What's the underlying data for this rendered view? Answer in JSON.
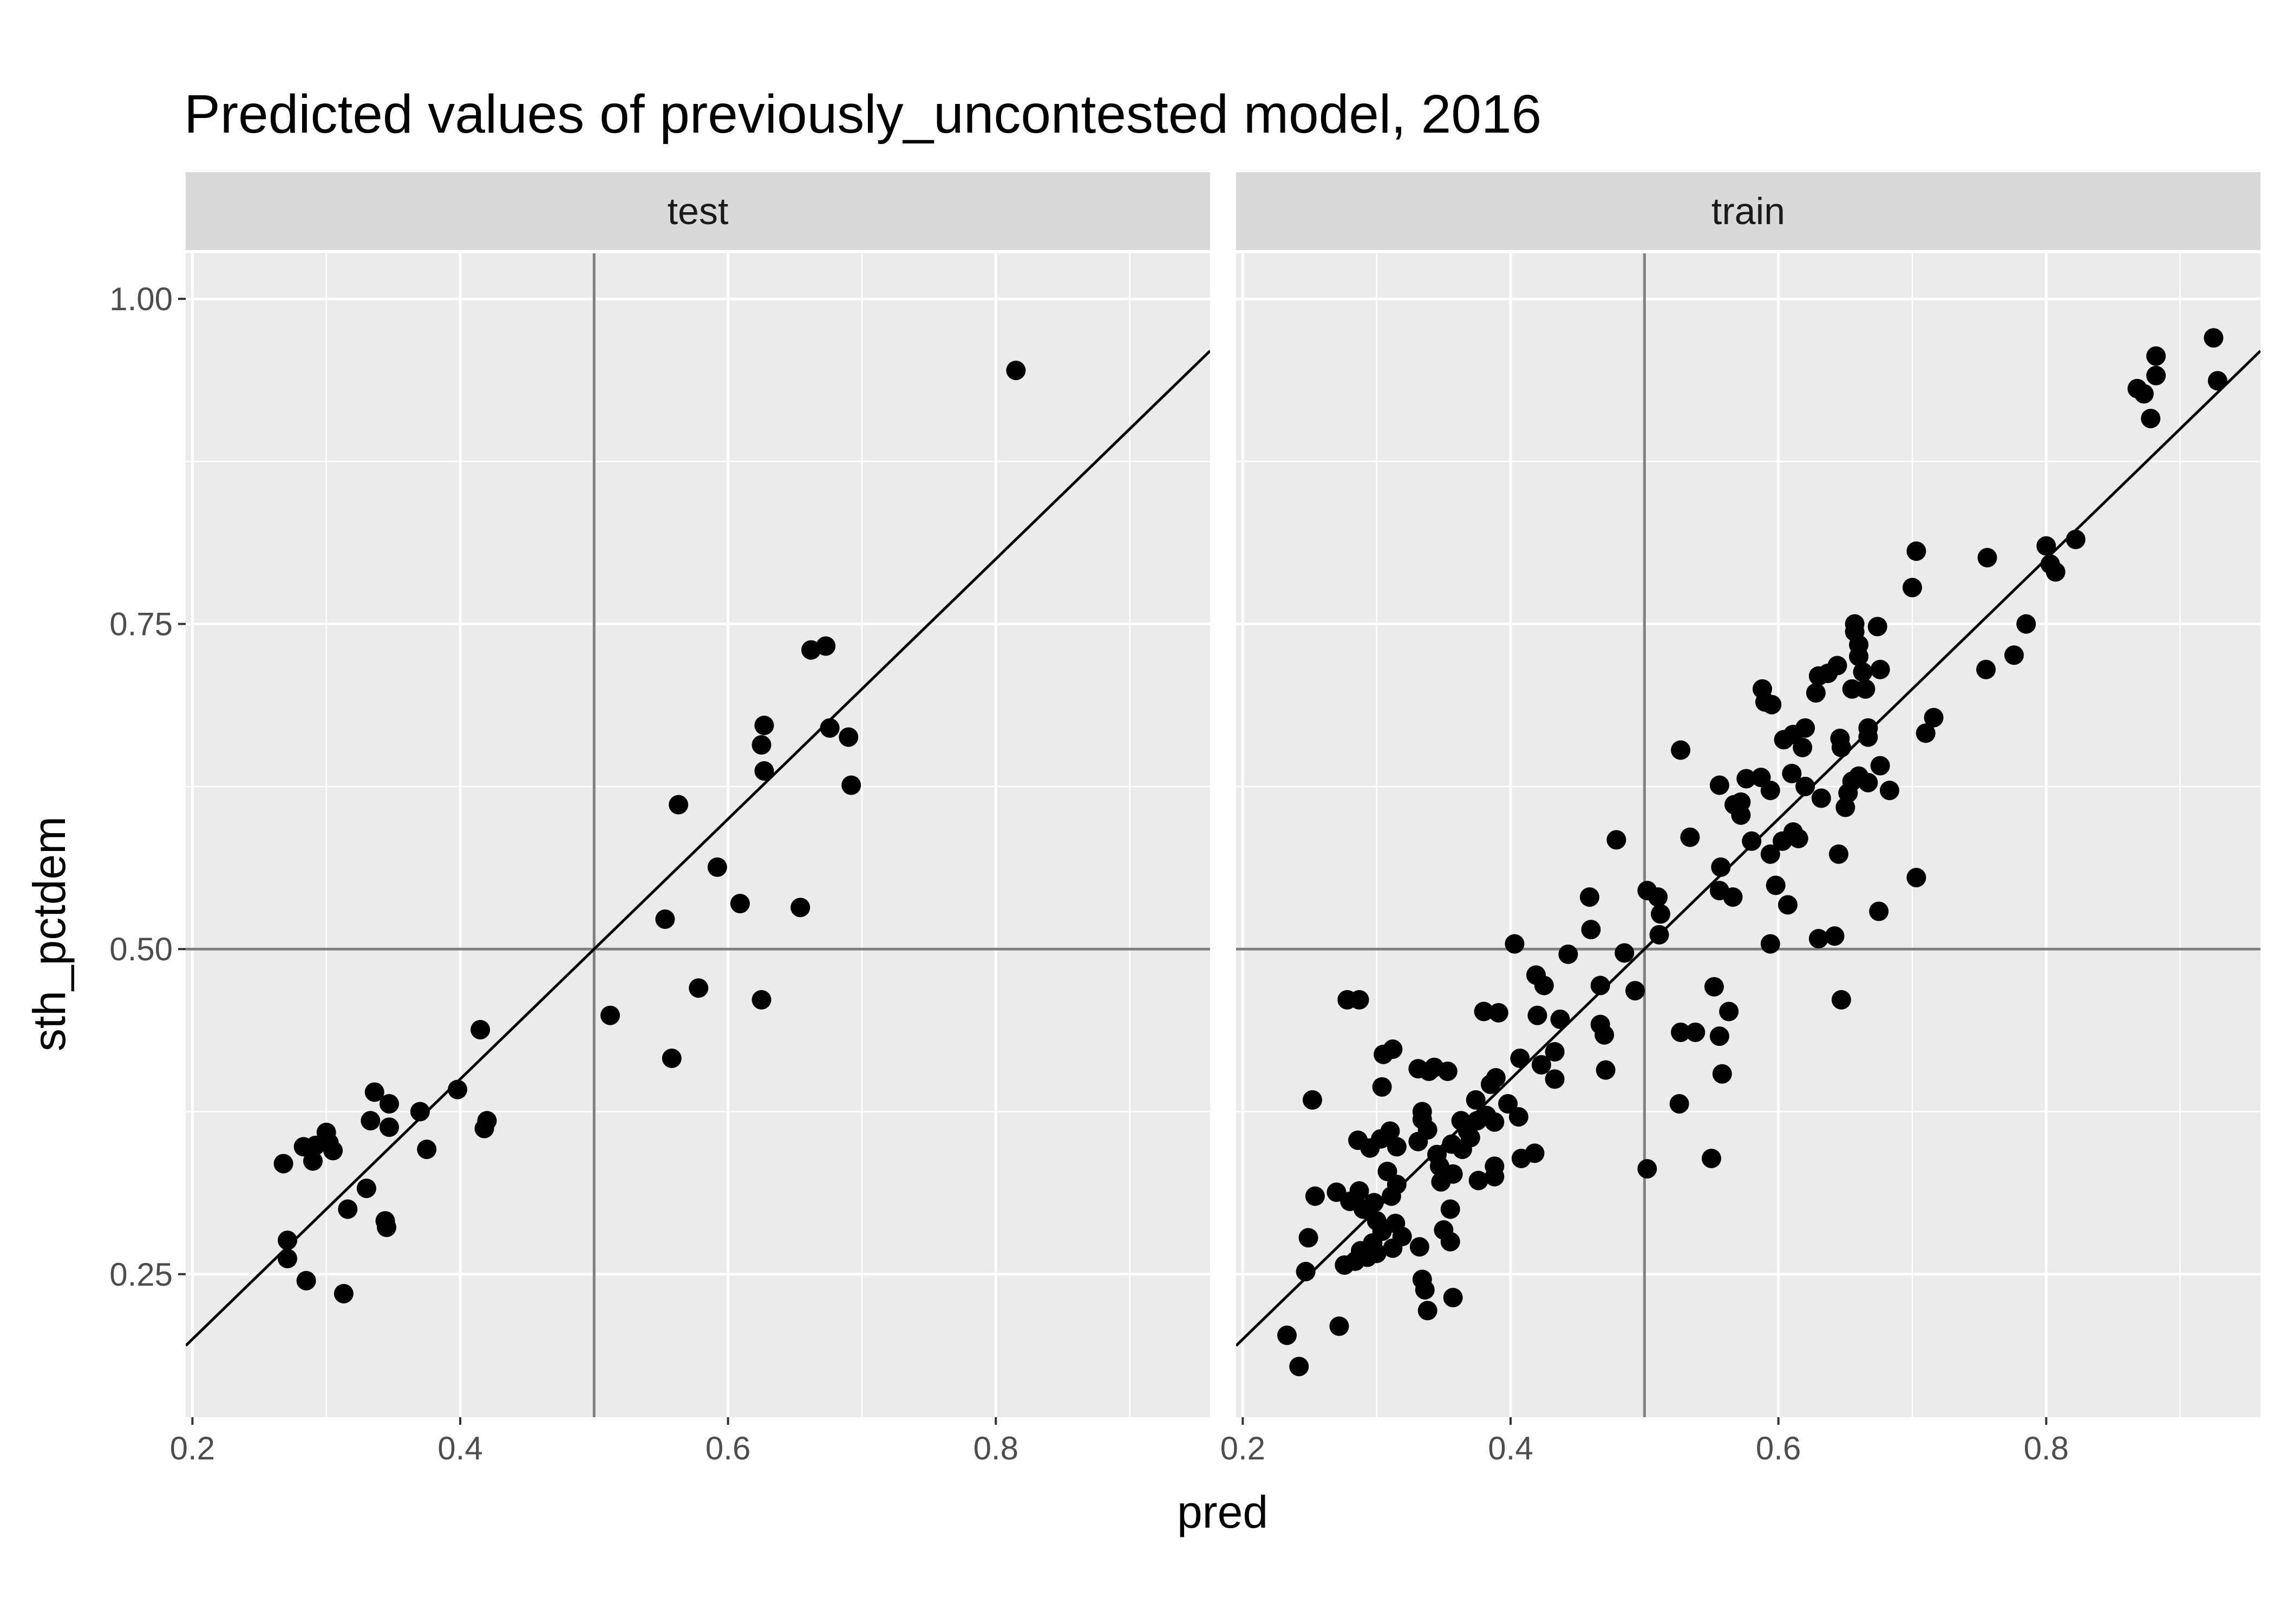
{
  "chart_data": {
    "type": "scatter",
    "title": "Predicted values of previously_uncontested model, 2016",
    "xlabel": "pred",
    "ylabel": "sth_pctdem",
    "xlim": [
      0.195,
      0.96
    ],
    "ylim": [
      0.14,
      1.035
    ],
    "x_ticks": [
      0.2,
      0.4,
      0.6,
      0.8
    ],
    "x_tick_labels": [
      "0.2",
      "0.4",
      "0.6",
      "0.8"
    ],
    "y_ticks": [
      0.25,
      0.5,
      0.75,
      1.0
    ],
    "y_tick_labels": [
      "0.25",
      "0.50",
      "0.75",
      "1.00"
    ],
    "reference_lines": {
      "vertical_x": 0.5,
      "horizontal_y": 0.5,
      "diagonal": "y = x"
    },
    "grid": true,
    "colors": {
      "panel_background": "#ebebeb",
      "strip_background": "#d9d9d9",
      "grid": "#ffffff",
      "points": "#000000",
      "reference_line": "#808080",
      "diagonal_line": "#000000"
    },
    "panels": [
      {
        "name": "test",
        "points": [
          [
            0.815,
            0.945
          ],
          [
            0.662,
            0.73
          ],
          [
            0.673,
            0.733
          ],
          [
            0.627,
            0.672
          ],
          [
            0.625,
            0.657
          ],
          [
            0.627,
            0.637
          ],
          [
            0.676,
            0.67
          ],
          [
            0.69,
            0.663
          ],
          [
            0.692,
            0.626
          ],
          [
            0.563,
            0.611
          ],
          [
            0.592,
            0.563
          ],
          [
            0.609,
            0.535
          ],
          [
            0.654,
            0.532
          ],
          [
            0.553,
            0.523
          ],
          [
            0.578,
            0.47
          ],
          [
            0.625,
            0.461
          ],
          [
            0.512,
            0.449
          ],
          [
            0.558,
            0.416
          ],
          [
            0.415,
            0.438
          ],
          [
            0.398,
            0.392
          ],
          [
            0.42,
            0.368
          ],
          [
            0.418,
            0.362
          ],
          [
            0.375,
            0.346
          ],
          [
            0.37,
            0.375
          ],
          [
            0.336,
            0.39
          ],
          [
            0.347,
            0.381
          ],
          [
            0.333,
            0.368
          ],
          [
            0.347,
            0.363
          ],
          [
            0.3,
            0.359
          ],
          [
            0.302,
            0.351
          ],
          [
            0.305,
            0.345
          ],
          [
            0.283,
            0.348
          ],
          [
            0.292,
            0.349
          ],
          [
            0.29,
            0.337
          ],
          [
            0.268,
            0.335
          ],
          [
            0.33,
            0.316
          ],
          [
            0.316,
            0.3
          ],
          [
            0.344,
            0.291
          ],
          [
            0.345,
            0.286
          ],
          [
            0.271,
            0.276
          ],
          [
            0.271,
            0.262
          ],
          [
            0.285,
            0.245
          ],
          [
            0.313,
            0.235
          ]
        ]
      },
      {
        "name": "train",
        "points": [
          [
            0.925,
            0.97
          ],
          [
            0.928,
            0.937
          ],
          [
            0.882,
            0.956
          ],
          [
            0.882,
            0.941
          ],
          [
            0.868,
            0.931
          ],
          [
            0.873,
            0.927
          ],
          [
            0.878,
            0.908
          ],
          [
            0.822,
            0.815
          ],
          [
            0.8,
            0.81
          ],
          [
            0.803,
            0.796
          ],
          [
            0.807,
            0.79
          ],
          [
            0.756,
            0.801
          ],
          [
            0.785,
            0.75
          ],
          [
            0.776,
            0.726
          ],
          [
            0.755,
            0.715
          ],
          [
            0.703,
            0.806
          ],
          [
            0.7,
            0.778
          ],
          [
            0.716,
            0.678
          ],
          [
            0.71,
            0.666
          ],
          [
            0.703,
            0.555
          ],
          [
            0.675,
            0.529
          ],
          [
            0.683,
            0.622
          ],
          [
            0.657,
            0.75
          ],
          [
            0.657,
            0.744
          ],
          [
            0.674,
            0.748
          ],
          [
            0.66,
            0.734
          ],
          [
            0.66,
            0.725
          ],
          [
            0.663,
            0.713
          ],
          [
            0.676,
            0.715
          ],
          [
            0.655,
            0.7
          ],
          [
            0.665,
            0.7
          ],
          [
            0.667,
            0.67
          ],
          [
            0.667,
            0.663
          ],
          [
            0.676,
            0.641
          ],
          [
            0.66,
            0.633
          ],
          [
            0.667,
            0.628
          ],
          [
            0.655,
            0.629
          ],
          [
            0.652,
            0.62
          ],
          [
            0.65,
            0.609
          ],
          [
            0.646,
            0.662
          ],
          [
            0.647,
            0.655
          ],
          [
            0.644,
            0.718
          ],
          [
            0.637,
            0.712
          ],
          [
            0.63,
            0.71
          ],
          [
            0.628,
            0.697
          ],
          [
            0.62,
            0.67
          ],
          [
            0.611,
            0.665
          ],
          [
            0.604,
            0.661
          ],
          [
            0.618,
            0.655
          ],
          [
            0.61,
            0.635
          ],
          [
            0.62,
            0.625
          ],
          [
            0.632,
            0.616
          ],
          [
            0.611,
            0.59
          ],
          [
            0.615,
            0.585
          ],
          [
            0.603,
            0.583
          ],
          [
            0.594,
            0.573
          ],
          [
            0.598,
            0.549
          ],
          [
            0.607,
            0.534
          ],
          [
            0.645,
            0.573
          ],
          [
            0.63,
            0.508
          ],
          [
            0.642,
            0.51
          ],
          [
            0.647,
            0.461
          ],
          [
            0.594,
            0.504
          ],
          [
            0.588,
            0.7
          ],
          [
            0.59,
            0.69
          ],
          [
            0.595,
            0.688
          ],
          [
            0.587,
            0.632
          ],
          [
            0.576,
            0.631
          ],
          [
            0.594,
            0.622
          ],
          [
            0.567,
            0.611
          ],
          [
            0.572,
            0.613
          ],
          [
            0.572,
            0.603
          ],
          [
            0.58,
            0.583
          ],
          [
            0.556,
            0.626
          ],
          [
            0.527,
            0.653
          ],
          [
            0.534,
            0.586
          ],
          [
            0.557,
            0.563
          ],
          [
            0.556,
            0.545
          ],
          [
            0.566,
            0.54
          ],
          [
            0.552,
            0.471
          ],
          [
            0.563,
            0.452
          ],
          [
            0.556,
            0.433
          ],
          [
            0.558,
            0.404
          ],
          [
            0.538,
            0.436
          ],
          [
            0.527,
            0.436
          ],
          [
            0.526,
            0.381
          ],
          [
            0.55,
            0.339
          ],
          [
            0.502,
            0.331
          ],
          [
            0.479,
            0.584
          ],
          [
            0.502,
            0.545
          ],
          [
            0.51,
            0.54
          ],
          [
            0.512,
            0.527
          ],
          [
            0.511,
            0.511
          ],
          [
            0.485,
            0.497
          ],
          [
            0.493,
            0.468
          ],
          [
            0.459,
            0.54
          ],
          [
            0.46,
            0.515
          ],
          [
            0.443,
            0.496
          ],
          [
            0.467,
            0.472
          ],
          [
            0.467,
            0.442
          ],
          [
            0.47,
            0.434
          ],
          [
            0.471,
            0.407
          ],
          [
            0.403,
            0.504
          ],
          [
            0.419,
            0.48
          ],
          [
            0.425,
            0.472
          ],
          [
            0.42,
            0.449
          ],
          [
            0.437,
            0.446
          ],
          [
            0.433,
            0.421
          ],
          [
            0.423,
            0.411
          ],
          [
            0.407,
            0.416
          ],
          [
            0.433,
            0.4
          ],
          [
            0.38,
            0.452
          ],
          [
            0.391,
            0.451
          ],
          [
            0.389,
            0.401
          ],
          [
            0.385,
            0.396
          ],
          [
            0.398,
            0.381
          ],
          [
            0.374,
            0.384
          ],
          [
            0.406,
            0.371
          ],
          [
            0.382,
            0.372
          ],
          [
            0.388,
            0.367
          ],
          [
            0.375,
            0.368
          ],
          [
            0.363,
            0.368
          ],
          [
            0.368,
            0.36
          ],
          [
            0.37,
            0.355
          ],
          [
            0.356,
            0.35
          ],
          [
            0.364,
            0.346
          ],
          [
            0.408,
            0.339
          ],
          [
            0.418,
            0.343
          ],
          [
            0.388,
            0.333
          ],
          [
            0.388,
            0.325
          ],
          [
            0.376,
            0.322
          ],
          [
            0.357,
            0.327
          ],
          [
            0.347,
            0.333
          ],
          [
            0.348,
            0.321
          ],
          [
            0.355,
            0.3
          ],
          [
            0.343,
            0.409
          ],
          [
            0.339,
            0.406
          ],
          [
            0.353,
            0.406
          ],
          [
            0.331,
            0.408
          ],
          [
            0.334,
            0.375
          ],
          [
            0.334,
            0.369
          ],
          [
            0.338,
            0.361
          ],
          [
            0.331,
            0.352
          ],
          [
            0.345,
            0.342
          ],
          [
            0.305,
            0.419
          ],
          [
            0.312,
            0.423
          ],
          [
            0.304,
            0.394
          ],
          [
            0.303,
            0.354
          ],
          [
            0.31,
            0.36
          ],
          [
            0.315,
            0.348
          ],
          [
            0.315,
            0.319
          ],
          [
            0.308,
            0.329
          ],
          [
            0.311,
            0.31
          ],
          [
            0.35,
            0.284
          ],
          [
            0.355,
            0.275
          ],
          [
            0.332,
            0.271
          ],
          [
            0.334,
            0.246
          ],
          [
            0.336,
            0.238
          ],
          [
            0.357,
            0.232
          ],
          [
            0.338,
            0.222
          ],
          [
            0.278,
            0.461
          ],
          [
            0.287,
            0.461
          ],
          [
            0.252,
            0.384
          ],
          [
            0.286,
            0.353
          ],
          [
            0.295,
            0.347
          ],
          [
            0.298,
            0.305
          ],
          [
            0.287,
            0.314
          ],
          [
            0.27,
            0.313
          ],
          [
            0.28,
            0.306
          ],
          [
            0.29,
            0.3
          ],
          [
            0.3,
            0.291
          ],
          [
            0.304,
            0.283
          ],
          [
            0.314,
            0.289
          ],
          [
            0.319,
            0.279
          ],
          [
            0.297,
            0.274
          ],
          [
            0.312,
            0.27
          ],
          [
            0.288,
            0.268
          ],
          [
            0.293,
            0.263
          ],
          [
            0.284,
            0.26
          ],
          [
            0.276,
            0.257
          ],
          [
            0.3,
            0.266
          ],
          [
            0.254,
            0.31
          ],
          [
            0.249,
            0.278
          ],
          [
            0.247,
            0.252
          ],
          [
            0.272,
            0.21
          ],
          [
            0.233,
            0.203
          ],
          [
            0.242,
            0.179
          ]
        ]
      }
    ]
  }
}
